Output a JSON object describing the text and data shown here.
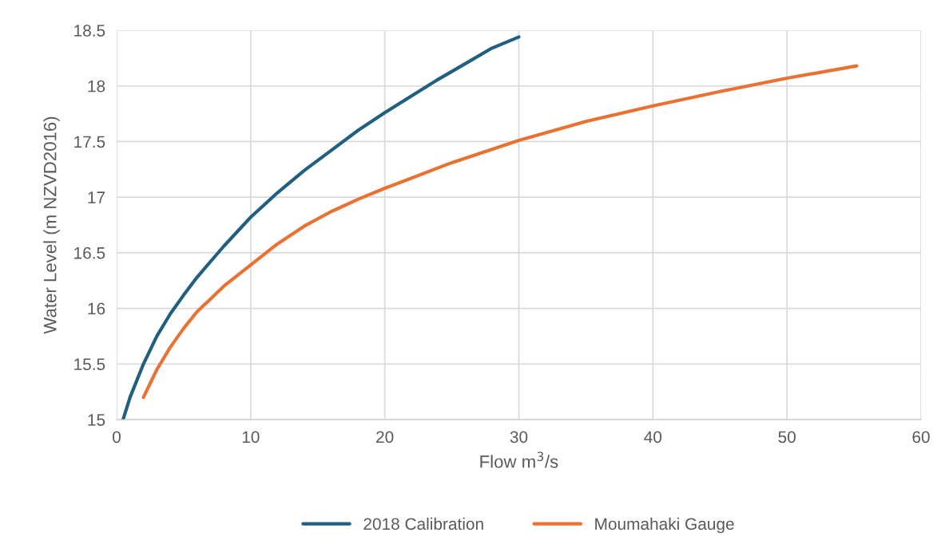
{
  "chart_data": {
    "type": "line",
    "xlabel": "Flow m$^{3}$/s",
    "ylabel": "Water Level (m NZVD2016)",
    "xlim": [
      0,
      60
    ],
    "xticks": [
      0,
      10,
      20,
      30,
      40,
      50,
      60
    ],
    "ylim": [
      15,
      18.5
    ],
    "yticks": [
      15,
      15.5,
      16,
      16.5,
      17,
      17.5,
      18,
      18.5
    ],
    "grid": true,
    "legend": "bottom",
    "marker": "none",
    "line_style": "solid",
    "series": [
      {
        "name": "2018 Calibration",
        "color": "#215f80",
        "x": [
          0.48,
          1,
          2,
          3,
          4,
          5,
          6,
          7,
          8,
          10,
          12,
          14,
          16,
          18,
          20,
          22,
          24,
          26,
          28,
          30
        ],
        "values": [
          15,
          15.2,
          15.5,
          15.75,
          15.95,
          16.12,
          16.28,
          16.42,
          16.56,
          16.82,
          17.04,
          17.24,
          17.42,
          17.6,
          17.76,
          17.91,
          18.06,
          18.2,
          18.34,
          18.44
        ]
      },
      {
        "name": "Moumahaki Gauge",
        "color": "#e97132",
        "x": [
          2,
          3,
          4,
          5,
          6,
          8,
          10,
          12,
          14,
          16,
          18,
          20,
          25,
          30,
          35,
          40,
          45,
          50,
          55.2
        ],
        "values": [
          15.2,
          15.45,
          15.65,
          15.82,
          15.97,
          16.2,
          16.39,
          16.58,
          16.74,
          16.87,
          16.98,
          17.08,
          17.31,
          17.51,
          17.68,
          17.82,
          17.95,
          18.07,
          18.18
        ]
      }
    ]
  }
}
